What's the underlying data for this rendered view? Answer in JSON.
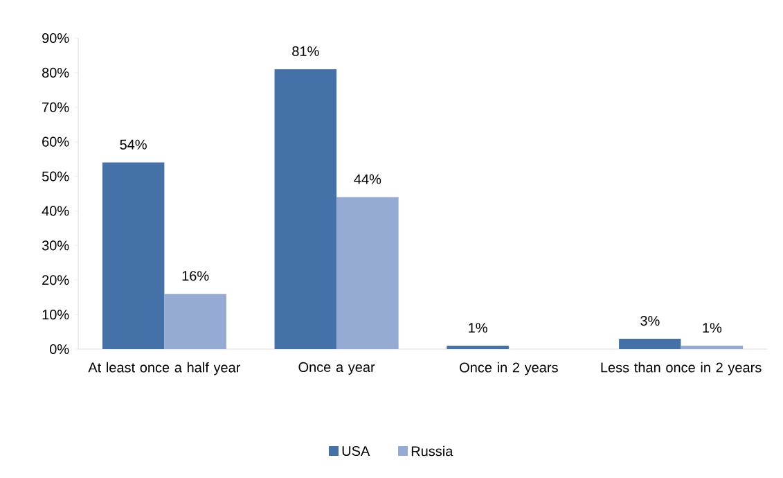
{
  "chart_data": {
    "type": "bar",
    "categories": [
      "At least once a half year",
      "Once a year",
      "Once in 2 years",
      "Less than once in 2 years"
    ],
    "series": [
      {
        "name": "USA",
        "color": "#4472a8",
        "values": [
          54,
          81,
          1,
          3
        ],
        "value_labels": [
          "54%",
          "81%",
          "1%",
          "3%"
        ]
      },
      {
        "name": "Russia",
        "color": "#95abd3",
        "values": [
          16,
          44,
          null,
          1
        ],
        "value_labels": [
          "16%",
          "44%",
          null,
          "1%"
        ]
      }
    ],
    "ylim": [
      0,
      90
    ],
    "yticks": [
      {
        "value": 0,
        "label": "0%"
      },
      {
        "value": 10,
        "label": "10%"
      },
      {
        "value": 20,
        "label": "20%"
      },
      {
        "value": 30,
        "label": "30%"
      },
      {
        "value": 40,
        "label": "40%"
      },
      {
        "value": 50,
        "label": "50%"
      },
      {
        "value": 60,
        "label": "60%"
      },
      {
        "value": 70,
        "label": "70%"
      },
      {
        "value": 80,
        "label": "80%"
      },
      {
        "value": 90,
        "label": "90%"
      }
    ],
    "legend": "bottom"
  }
}
